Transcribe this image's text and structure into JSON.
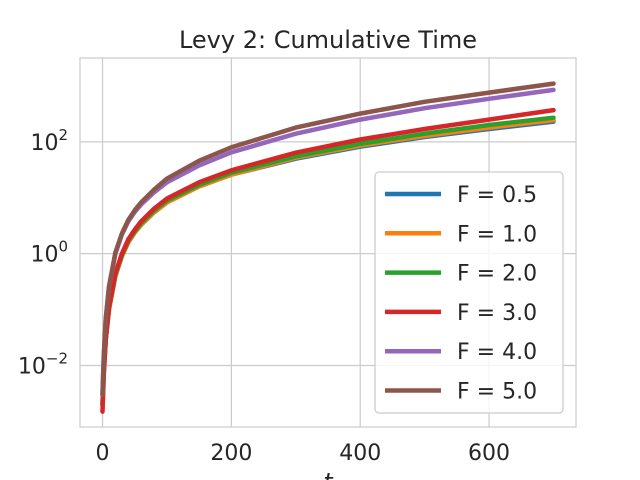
{
  "chart_data": {
    "type": "line",
    "title": "Levy 2: Cumulative Time",
    "xlabel": "t",
    "ylabel": "",
    "xlim": [
      -35,
      735
    ],
    "ylim_log10": [
      -3.1,
      3.5
    ],
    "yscale": "log",
    "grid": true,
    "legend_position": "lower-right",
    "x_ticks": [
      0,
      200,
      400,
      600
    ],
    "x_tick_labels": [
      "0",
      "200",
      "400",
      "600"
    ],
    "y_ticks_log10": [
      -2,
      0,
      2
    ],
    "y_tick_labels": [
      {
        "base": "10",
        "exp": "−2"
      },
      {
        "base": "10",
        "exp": "0"
      },
      {
        "base": "10",
        "exp": "2"
      }
    ],
    "x": [
      0,
      2,
      5,
      10,
      20,
      30,
      40,
      50,
      60,
      80,
      100,
      150,
      200,
      300,
      400,
      500,
      600,
      700
    ],
    "series": [
      {
        "name": "F = 0.5",
        "color": "#1f77b4",
        "values": [
          0.002,
          0.008,
          0.03,
          0.1,
          0.4,
          0.9,
          1.6,
          2.4,
          3.3,
          5.5,
          8.3,
          16,
          26,
          50,
          82,
          122,
          170,
          230
        ]
      },
      {
        "name": "F = 1.0",
        "color": "#ff7f0e",
        "values": [
          0.002,
          0.008,
          0.03,
          0.1,
          0.4,
          0.9,
          1.6,
          2.4,
          3.3,
          5.5,
          8.3,
          16,
          26,
          52,
          86,
          128,
          180,
          245
        ]
      },
      {
        "name": "F = 2.0",
        "color": "#2ca02c",
        "values": [
          0.002,
          0.008,
          0.03,
          0.11,
          0.42,
          0.95,
          1.7,
          2.5,
          3.5,
          5.9,
          8.9,
          17,
          28,
          55,
          92,
          140,
          200,
          270
        ]
      },
      {
        "name": "F = 3.0",
        "color": "#d62728",
        "values": [
          0.0015,
          0.007,
          0.03,
          0.11,
          0.45,
          1.0,
          1.8,
          2.7,
          3.8,
          6.4,
          9.7,
          19,
          31,
          64,
          110,
          170,
          250,
          370
        ]
      },
      {
        "name": "F = 4.0",
        "color": "#9467bd",
        "values": [
          0.003,
          0.015,
          0.07,
          0.25,
          1.0,
          2.2,
          3.8,
          5.6,
          7.6,
          12.5,
          19,
          38,
          65,
          140,
          250,
          400,
          590,
          850
        ]
      },
      {
        "name": "F = 5.0",
        "color": "#8c564b",
        "values": [
          0.003,
          0.015,
          0.07,
          0.26,
          1.05,
          2.3,
          4.0,
          6.0,
          8.3,
          14,
          22,
          46,
          80,
          180,
          320,
          520,
          760,
          1100
        ]
      }
    ]
  }
}
